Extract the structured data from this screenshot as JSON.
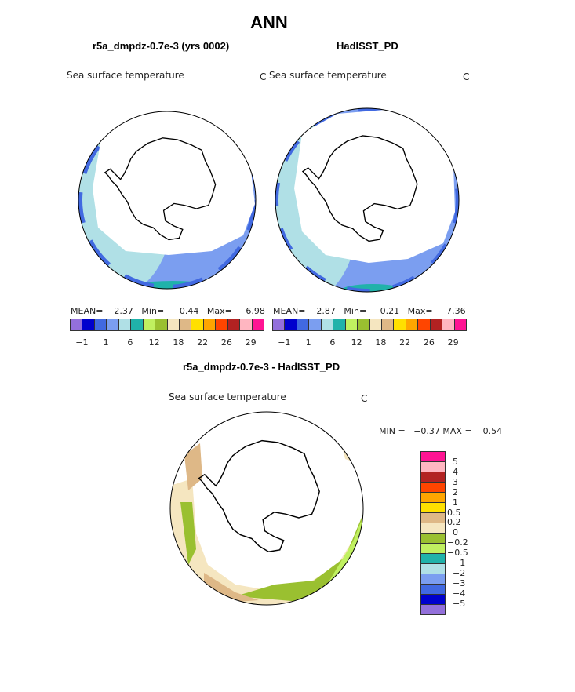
{
  "title": "ANN",
  "panels": [
    {
      "subtitle": "r5a_dmpdz-0.7e-3 (yrs 0002)",
      "variable": "Sea surface temperature",
      "units": "C",
      "stats": {
        "mean_label": "MEAN=",
        "mean": "2.37",
        "min_label": "Min=",
        "min": "−0.44",
        "max_label": "Max=",
        "max": "6.98"
      }
    },
    {
      "subtitle": "HadISST_PD",
      "variable": "Sea surface temperature",
      "units": "C",
      "stats": {
        "mean_label": "MEAN=",
        "mean": "2.87",
        "min_label": "Min=",
        "min": "0.21",
        "max_label": "Max=",
        "max": "7.36"
      }
    }
  ],
  "colorbar_colors": [
    "#9370DB",
    "#0000CD",
    "#4169E1",
    "#7B9EF0",
    "#B0E0E6",
    "#20B2AA",
    "#C0F060",
    "#9AC030",
    "#F5E6C0",
    "#DEB887",
    "#FFE000",
    "#FFA500",
    "#FF4500",
    "#B22222",
    "#FFB6C1",
    "#FF1493"
  ],
  "colorbar_labels": [
    "−1",
    "1",
    "6",
    "12",
    "18",
    "22",
    "26",
    "29"
  ],
  "diff": {
    "subtitle": "r5a_dmpdz-0.7e-3 - HadISST_PD",
    "variable": "Sea surface temperature",
    "units": "C",
    "minmax": {
      "min_label": "MIN =",
      "min": "−0.37",
      "max_label": "MAX =",
      "max": "0.54"
    },
    "colorbar_labels": [
      "5",
      "4",
      "3",
      "2",
      "1",
      "0.5",
      "0.2",
      "0",
      "−0.2",
      "−0.5",
      "−1",
      "−2",
      "−3",
      "−4",
      "−5"
    ]
  }
}
